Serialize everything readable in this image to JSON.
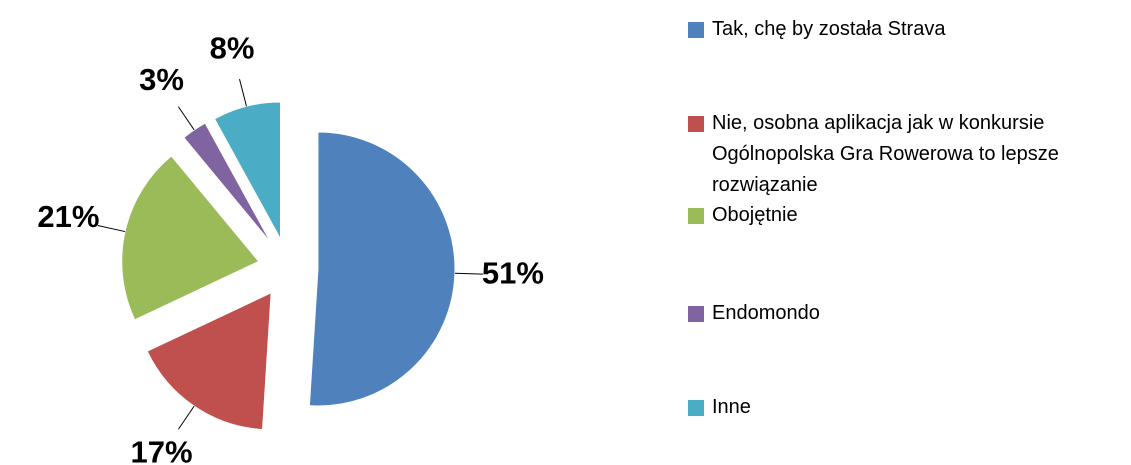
{
  "chart_data": {
    "type": "pie",
    "categories": [
      "Tak, chę by została Strava",
      "Nie, osobna aplikacja jak w konkursie Ogólnopolska Gra Rowerowa to lepsze rozwiązanie",
      "Obojętnie",
      "Endomondo",
      "Inne"
    ],
    "values": [
      51,
      17,
      21,
      3,
      8
    ],
    "value_labels": [
      "51%",
      "17%",
      "21%",
      "3%",
      "8%"
    ],
    "colors": [
      "#4f81bd",
      "#c0504d",
      "#9bbb59",
      "#8064a2",
      "#4bacc6"
    ],
    "legend": "right"
  }
}
